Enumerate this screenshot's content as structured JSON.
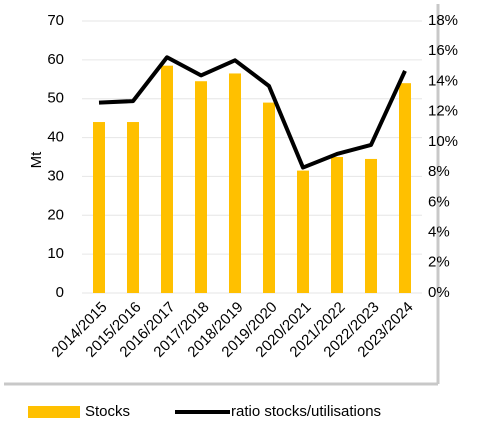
{
  "chart_data": {
    "type": "bar",
    "y_label": "Mt",
    "categories": [
      "2014/2015",
      "2015/2016",
      "2016/2017",
      "2017/2018",
      "2018/2019",
      "2019/2020",
      "2020/2021",
      "2021/2022",
      "2022/2023",
      "2023/2024"
    ],
    "series": [
      {
        "name": "Stocks",
        "type": "bar",
        "color": "#ffc000",
        "values": [
          44,
          44,
          58.5,
          54.5,
          56.5,
          49,
          31.5,
          35,
          34.5,
          54
        ]
      },
      {
        "name": "ratio stocks/utilisations",
        "type": "line",
        "axis": "y2",
        "color": "#000000",
        "values": [
          12.6,
          12.7,
          15.6,
          14.4,
          15.4,
          13.7,
          8.3,
          9.2,
          9.8,
          14.7
        ]
      }
    ],
    "ylim": [
      0,
      70
    ],
    "yticks": [
      0,
      10,
      20,
      30,
      40,
      50,
      60,
      70
    ],
    "y2lim": [
      0,
      18
    ],
    "y2ticks": [
      {
        "value": 0,
        "label": "0%"
      },
      {
        "value": 2,
        "label": "2%"
      },
      {
        "value": 4,
        "label": "4%"
      },
      {
        "value": 6,
        "label": "6%"
      },
      {
        "value": 8,
        "label": "8%"
      },
      {
        "value": 10,
        "label": "10%"
      },
      {
        "value": 12,
        "label": "12%"
      },
      {
        "value": 14,
        "label": "14%"
      },
      {
        "value": 16,
        "label": "16%"
      },
      {
        "value": 18,
        "label": "18%"
      }
    ],
    "grid": true,
    "legend": "bottom"
  }
}
